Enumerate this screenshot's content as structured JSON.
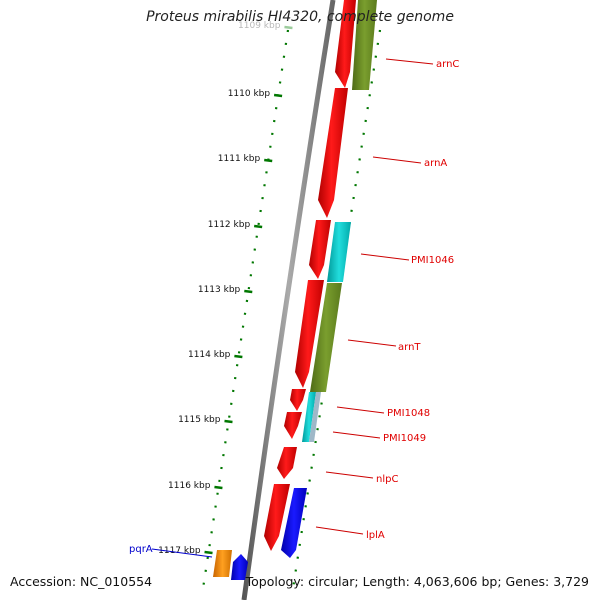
{
  "title": "Proteus mirabilis HI4320, complete genome",
  "footer": {
    "accession": "Accession: NC_010554",
    "topology": "Topology: circular; Length: 4,063,606 bp; Genes: 3,729"
  },
  "ticks": [
    {
      "label": "1109 kbp",
      "faded": true
    },
    {
      "label": "1110 kbp"
    },
    {
      "label": "1111 kbp"
    },
    {
      "label": "1112 kbp"
    },
    {
      "label": "1113 kbp"
    },
    {
      "label": "1114 kbp"
    },
    {
      "label": "1115 kbp"
    },
    {
      "label": "1116 kbp"
    },
    {
      "label": "1117 kbp"
    }
  ],
  "genes": [
    {
      "name": "arnC",
      "color": "#e80000"
    },
    {
      "name": "arnA",
      "color": "#e80000"
    },
    {
      "name": "PMI1046",
      "color": "#e80000"
    },
    {
      "name": "arnT",
      "color": "#e80000"
    },
    {
      "name": "PMI1048",
      "color": "#e80000"
    },
    {
      "name": "PMI1049",
      "color": "#e80000"
    },
    {
      "name": "nlpC",
      "color": "#e80000"
    },
    {
      "name": "lplA",
      "color": "#e80000"
    },
    {
      "name": "pqrA",
      "color": "#0000cc"
    }
  ],
  "colors": {
    "cds_forward": "#ff0000",
    "trna_like": "#00cccc",
    "olive": "#6b8e23",
    "blue": "#0000ff",
    "orange": "#ff8c00",
    "backbone": "#808080",
    "tick_green": "#007700"
  }
}
